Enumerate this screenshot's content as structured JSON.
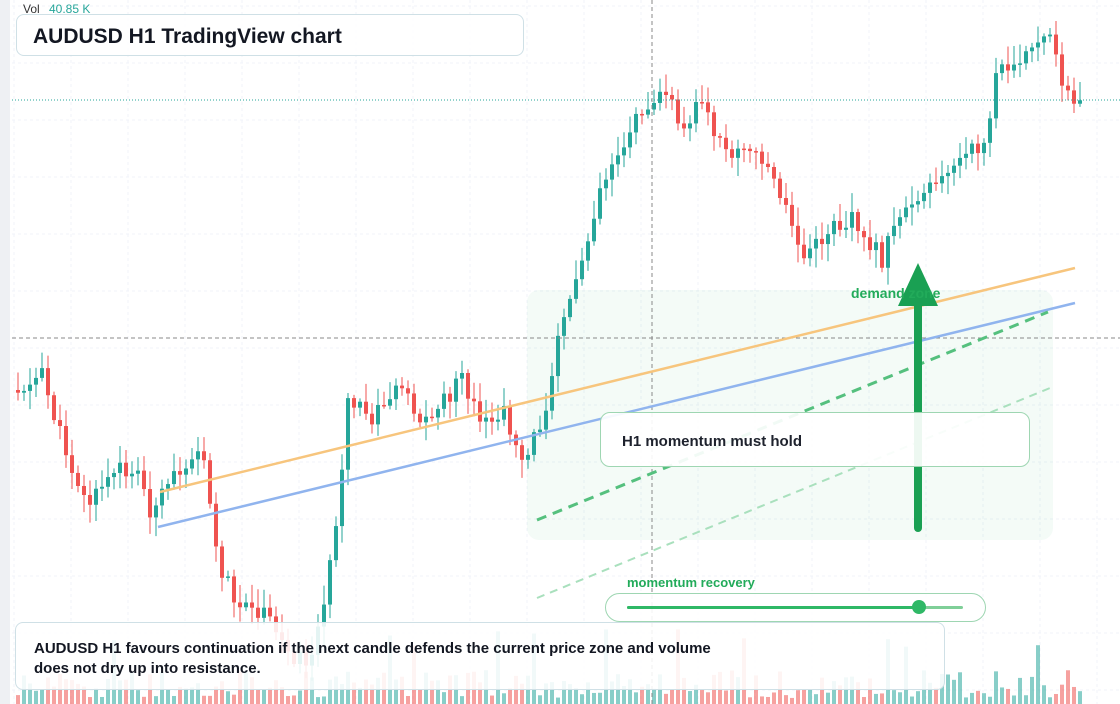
{
  "header": {
    "volume_label": "Vol",
    "volume_value": "40.85 K",
    "title": "AUDUSD H1 TradingView chart"
  },
  "annotations": {
    "momentum_note": "H1 momentum must hold",
    "zone_label": "demand zone",
    "recovery_label": "momentum recovery",
    "recovery_level": 0.87
  },
  "caption": {
    "text": "AUDUSD H1 favours continuation if the next candle defends the current price zone and volume does not dry up into resistance."
  },
  "colors": {
    "bull": "#26a69a",
    "bear": "#ef5350",
    "accent": "#22ab5a",
    "ma_fast": "#f7c57d",
    "ma_slow": "#90b4ee"
  },
  "chart_data": {
    "type": "candlestick",
    "symbol": "AUDUSD",
    "timeframe": "H1",
    "overlays": [
      "moving average (orange)",
      "moving average (blue)",
      "dashed green trendlines",
      "demand arrow up"
    ]
  }
}
